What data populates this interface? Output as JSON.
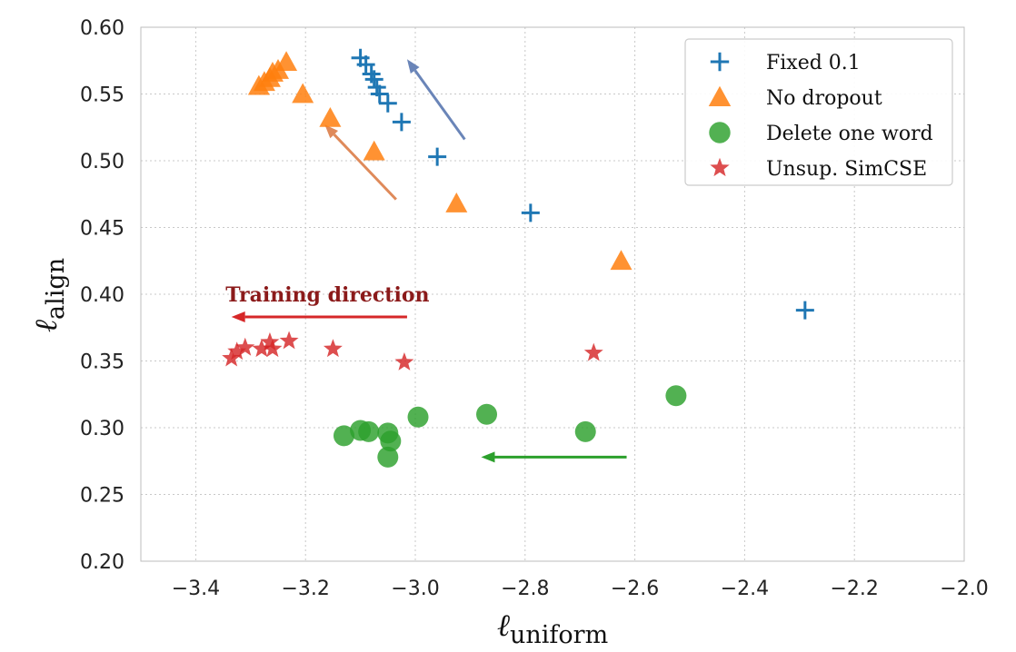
{
  "chart_data": {
    "type": "scatter",
    "xlabel": "ℓ",
    "xlabel_sub": "uniform",
    "ylabel": "ℓ",
    "ylabel_sub": "align",
    "xlim": [
      -3.5,
      -2.0
    ],
    "ylim": [
      0.2,
      0.6
    ],
    "xticks": [
      -3.4,
      -3.2,
      -3.0,
      -2.8,
      -2.6,
      -2.4,
      -2.2,
      -2.0
    ],
    "xtick_labels": [
      "−3.4",
      "−3.2",
      "−3.0",
      "−2.8",
      "−2.6",
      "−2.4",
      "−2.2",
      "−2.0"
    ],
    "yticks": [
      0.2,
      0.25,
      0.3,
      0.35,
      0.4,
      0.45,
      0.5,
      0.55,
      0.6
    ],
    "ytick_labels": [
      "0.20",
      "0.25",
      "0.30",
      "0.35",
      "0.40",
      "0.45",
      "0.50",
      "0.55",
      "0.60"
    ],
    "grid": true,
    "legend_position": "top-right",
    "series": [
      {
        "name": "Fixed 0.1",
        "marker": "plus",
        "color": "#1f77b4",
        "points": [
          [
            -3.1,
            0.577
          ],
          [
            -3.09,
            0.572
          ],
          [
            -3.08,
            0.565
          ],
          [
            -3.075,
            0.561
          ],
          [
            -3.07,
            0.555
          ],
          [
            -3.065,
            0.55
          ],
          [
            -3.05,
            0.543
          ],
          [
            -3.025,
            0.529
          ],
          [
            -2.96,
            0.503
          ],
          [
            -2.79,
            0.461
          ],
          [
            -2.29,
            0.388
          ]
        ]
      },
      {
        "name": "No dropout",
        "marker": "triangle",
        "color": "#ff7f0e",
        "points": [
          [
            -3.285,
            0.556
          ],
          [
            -3.275,
            0.559
          ],
          [
            -3.265,
            0.562
          ],
          [
            -3.26,
            0.566
          ],
          [
            -3.25,
            0.568
          ],
          [
            -3.235,
            0.574
          ],
          [
            -3.205,
            0.55
          ],
          [
            -3.155,
            0.532
          ],
          [
            -3.075,
            0.507
          ],
          [
            -2.925,
            0.468
          ],
          [
            -2.625,
            0.425
          ]
        ]
      },
      {
        "name": "Delete one word",
        "marker": "circle",
        "color": "#2ca02c",
        "points": [
          [
            -3.13,
            0.294
          ],
          [
            -3.1,
            0.298
          ],
          [
            -3.085,
            0.297
          ],
          [
            -3.05,
            0.296
          ],
          [
            -3.045,
            0.29
          ],
          [
            -3.05,
            0.278
          ],
          [
            -2.995,
            0.308
          ],
          [
            -2.87,
            0.31
          ],
          [
            -2.69,
            0.297
          ],
          [
            -2.525,
            0.324
          ]
        ]
      },
      {
        "name": "Unsup. SimCSE",
        "marker": "star",
        "color": "#d62728",
        "points": [
          [
            -3.335,
            0.352
          ],
          [
            -3.325,
            0.357
          ],
          [
            -3.31,
            0.36
          ],
          [
            -3.28,
            0.359
          ],
          [
            -3.265,
            0.364
          ],
          [
            -3.26,
            0.359
          ],
          [
            -3.23,
            0.365
          ],
          [
            -3.15,
            0.359
          ],
          [
            -3.02,
            0.349
          ],
          [
            -2.675,
            0.356
          ]
        ]
      }
    ],
    "arrows": [
      {
        "color": "#6a85b8",
        "from": [
          -2.91,
          0.516
        ],
        "to": [
          -3.015,
          0.576
        ]
      },
      {
        "color": "#df8a5a",
        "from": [
          -3.035,
          0.471
        ],
        "to": [
          -3.165,
          0.527
        ]
      },
      {
        "color": "#d62728",
        "from": [
          -3.015,
          0.383
        ],
        "to": [
          -3.335,
          0.383
        ]
      },
      {
        "color": "#2ca02c",
        "from": [
          -2.615,
          0.278
        ],
        "to": [
          -2.88,
          0.278
        ]
      }
    ],
    "annotation": {
      "text": "Training direction",
      "color": "#8b1a1a",
      "at": [
        -3.16,
        0.4
      ]
    }
  }
}
